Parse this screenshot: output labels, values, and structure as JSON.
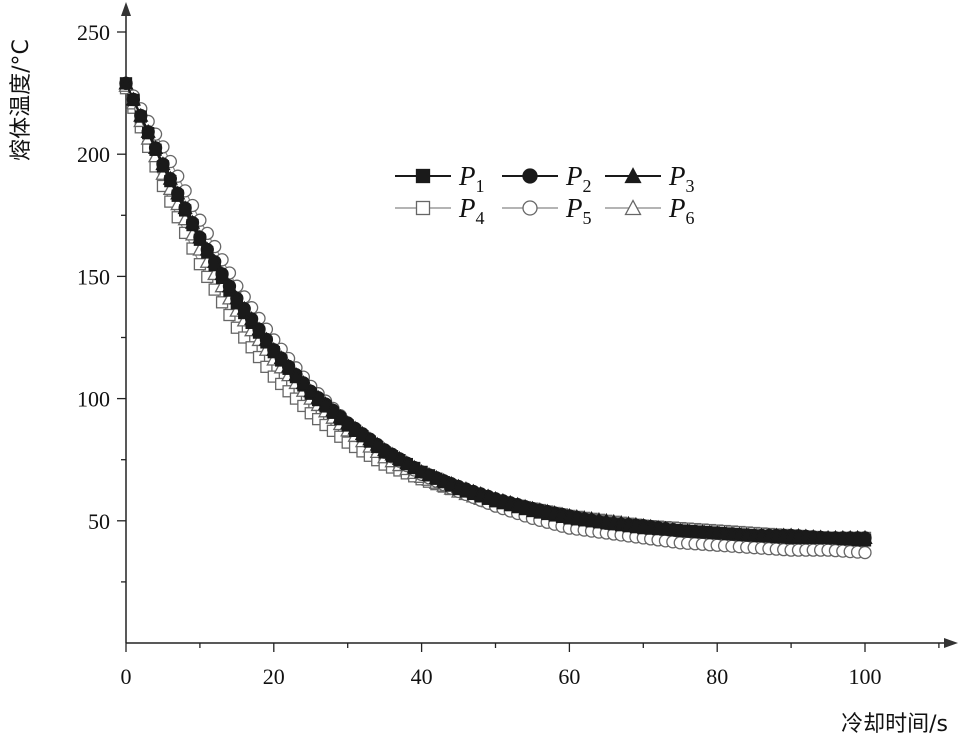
{
  "chart_data": {
    "type": "line",
    "title": "",
    "xlabel": "冷却时间/s",
    "ylabel": "熔体温度/°C",
    "xlim": [
      0,
      110
    ],
    "ylim": [
      0,
      250
    ],
    "xticks": [
      "0",
      "20",
      "40",
      "60",
      "80",
      "100"
    ],
    "yticks": [
      "50",
      "100",
      "150",
      "200",
      "250"
    ],
    "grid": false,
    "legend_position": "upper-center",
    "x": [
      0,
      5,
      10,
      15,
      20,
      25,
      30,
      35,
      40,
      45,
      50,
      55,
      60,
      65,
      70,
      75,
      80,
      85,
      90,
      95,
      100
    ],
    "series": [
      {
        "name": "P",
        "sub": "1",
        "marker": "filled-square",
        "values": [
          229,
          195,
          165,
          139,
          119,
          102,
          89,
          78,
          70,
          63,
          58,
          54,
          51,
          49,
          47,
          46,
          45,
          44,
          43,
          43,
          42
        ]
      },
      {
        "name": "P",
        "sub": "2",
        "marker": "filled-circle",
        "values": [
          229,
          196,
          166,
          141,
          120,
          103,
          90,
          79,
          70,
          64,
          59,
          55,
          52,
          49,
          48,
          46,
          45,
          44,
          44,
          43,
          43
        ]
      },
      {
        "name": "P",
        "sub": "3",
        "marker": "filled-triangle",
        "values": [
          229,
          196,
          166,
          141,
          120,
          103,
          90,
          79,
          70,
          64,
          59,
          55,
          52,
          50,
          48,
          46,
          45,
          44,
          44,
          43,
          43
        ]
      },
      {
        "name": "P",
        "sub": "4",
        "marker": "open-square",
        "values": [
          227,
          187,
          155,
          129,
          109,
          94,
          82,
          73,
          67,
          62,
          58,
          55,
          52,
          50,
          48,
          47,
          46,
          45,
          44,
          43,
          43
        ]
      },
      {
        "name": "P",
        "sub": "5",
        "marker": "open-circle",
        "values": [
          229,
          203,
          173,
          146,
          124,
          105,
          90,
          78,
          69,
          62,
          56,
          51,
          47,
          45,
          43,
          41,
          40,
          39,
          38,
          38,
          37
        ]
      },
      {
        "name": "P",
        "sub": "6",
        "marker": "open-triangle",
        "values": [
          228,
          192,
          161,
          136,
          116,
          100,
          87,
          76,
          68,
          62,
          57,
          54,
          51,
          49,
          47,
          46,
          45,
          44,
          44,
          43,
          43
        ]
      }
    ]
  }
}
